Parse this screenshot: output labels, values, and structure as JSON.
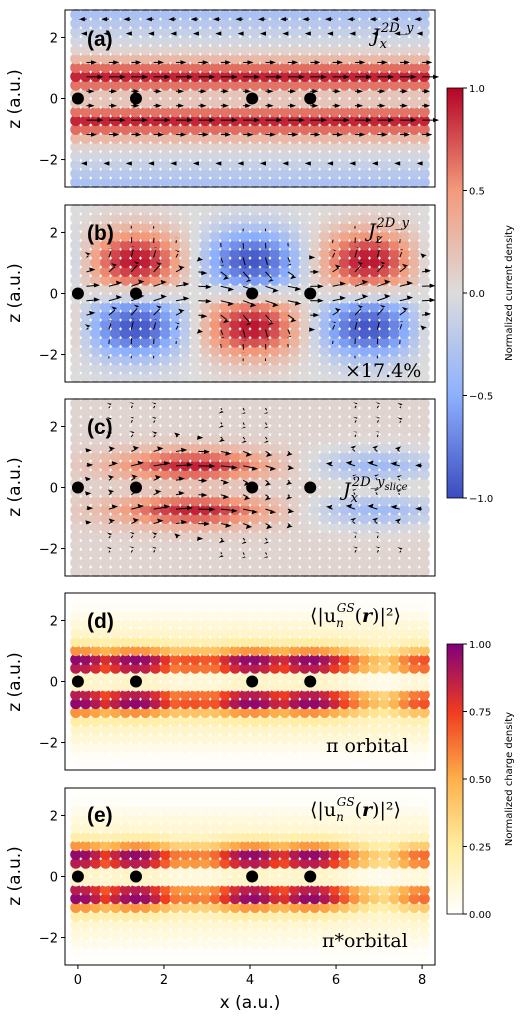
{
  "figure": {
    "panels": [
      {
        "tag": "(a)",
        "quantity": "Jx 2D_y",
        "colormap": "coolwarm",
        "xlabel": "",
        "ylabel": "z (a.u.)"
      },
      {
        "tag": "(b)",
        "quantity": "Jz 2D_y",
        "colormap": "coolwarm",
        "scale_note": "×17.4%",
        "xlabel": "",
        "ylabel": "z (a.u.)"
      },
      {
        "tag": "(c)",
        "quantity": "Jx 2D_y_slice",
        "colormap": "coolwarm",
        "xlabel": "",
        "ylabel": "z (a.u.)"
      },
      {
        "tag": "(d)",
        "quantity": "⟨|u_n^GS(r)|²⟩",
        "colormap": "YlOrRd-purple",
        "orbital": "π orbital",
        "xlabel": "",
        "ylabel": "z (a.u.)"
      },
      {
        "tag": "(e)",
        "quantity": "⟨|u_n^GS(r)|²⟩",
        "colormap": "YlOrRd-purple",
        "orbital": "π*orbital",
        "xlabel": "x (a.u.)",
        "ylabel": "z (a.u.)"
      }
    ],
    "annotations": {
      "jx_prefix": "J",
      "jx_sub": "x",
      "sup_2dy": "2D_y",
      "jz_sub": "z",
      "sup_2dy_slice": "2D_y",
      "slice_text": "slice",
      "rho_left": "⟨|u",
      "rho_n": "n",
      "rho_gs": "GS",
      "rho_mid": "(",
      "rho_r": "r",
      "rho_end": ")|²⟩"
    },
    "colorbars": [
      {
        "label": "Normalized current density",
        "ticks": [
          "1.0",
          "0.5",
          "0.0",
          "−0.5",
          "−1.0"
        ],
        "vmin": -1.0,
        "vmax": 1.0,
        "colors": [
          "#3b4cc0",
          "#dddcdc",
          "#b40426"
        ]
      },
      {
        "label": "Normalized charge density",
        "ticks": [
          "1.00",
          "0.75",
          "0.50",
          "0.25",
          "0.00"
        ],
        "vmin": 0.0,
        "vmax": 1.0,
        "colors": [
          "#ffffff",
          "#ffeda0",
          "#fd8d3c",
          "#e31a1c",
          "#80007a"
        ]
      }
    ]
  },
  "chart_data": {
    "type": "heatmap",
    "x_ticks": [
      "0",
      "2",
      "4",
      "6",
      "8"
    ],
    "z_ticks": [
      "2",
      "0",
      "−2"
    ],
    "xlim": [
      -0.3,
      8.3
    ],
    "zlim": [
      -2.9,
      2.9
    ],
    "xlabel": "x (a.u.)",
    "ylabel": "z (a.u.)",
    "atoms_x": [
      0,
      1.35,
      4.05,
      5.4
    ],
    "atoms_z": 0
  }
}
